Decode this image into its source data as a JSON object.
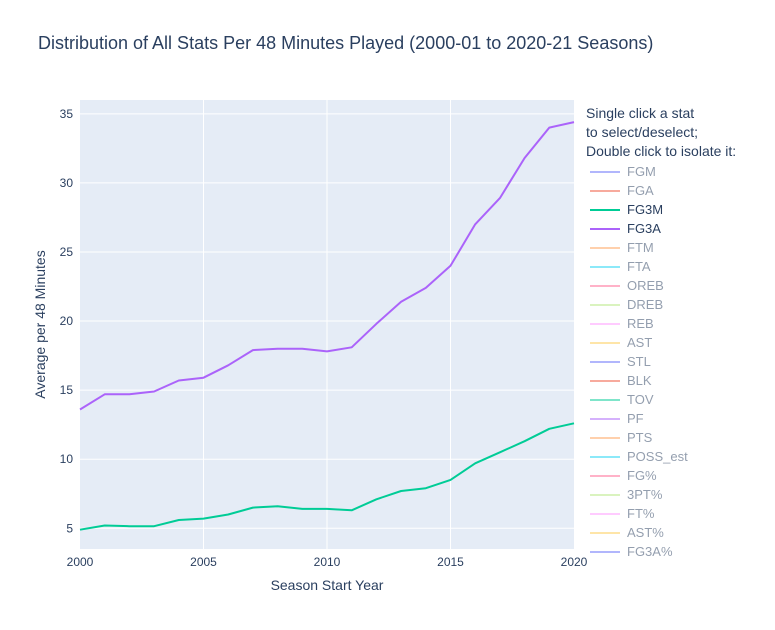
{
  "chart_data": {
    "type": "line",
    "title": "Distribution of All Stats Per 48 Minutes Played (2000-01 to 2020-21 Seasons)",
    "xlabel": "Season Start Year",
    "ylabel": "Average per 48 Minutes",
    "xlim": [
      2000,
      2020
    ],
    "ylim": [
      3.5,
      36
    ],
    "x_ticks": [
      "2000",
      "2005",
      "2010",
      "2015",
      "2020"
    ],
    "x_tick_values": [
      2000,
      2005,
      2010,
      2015,
      2020
    ],
    "y_ticks": [
      "5",
      "10",
      "15",
      "20",
      "25",
      "30",
      "35"
    ],
    "y_tick_values": [
      5,
      10,
      15,
      20,
      25,
      30,
      35
    ],
    "grid": true,
    "legend_placement": "right",
    "plot_background": "#e5ecf6",
    "x": [
      2000,
      2001,
      2002,
      2003,
      2004,
      2005,
      2006,
      2007,
      2008,
      2009,
      2010,
      2011,
      2012,
      2013,
      2014,
      2015,
      2016,
      2017,
      2018,
      2019,
      2020
    ],
    "series": [
      {
        "name": "FG3M",
        "color": "#00cc96",
        "visible": true,
        "values": [
          4.9,
          5.2,
          5.15,
          5.15,
          5.6,
          5.7,
          6.0,
          6.5,
          6.6,
          6.4,
          6.4,
          6.3,
          7.1,
          7.7,
          7.9,
          8.5,
          9.7,
          10.5,
          11.3,
          12.2,
          12.6
        ]
      },
      {
        "name": "FG3A",
        "color": "#ab63fa",
        "visible": true,
        "values": [
          13.6,
          14.7,
          14.7,
          14.9,
          15.7,
          15.9,
          16.8,
          17.9,
          18.0,
          18.0,
          17.8,
          18.1,
          19.8,
          21.4,
          22.4,
          24.0,
          27.0,
          28.9,
          31.8,
          34.0,
          34.4
        ]
      }
    ]
  },
  "legend": {
    "title": "Single click a stat\nto select/deselect;\nDouble click to isolate it:",
    "items": [
      {
        "label": "FGM",
        "color": "#636efa",
        "visible": false
      },
      {
        "label": "FGA",
        "color": "#ef553b",
        "visible": false
      },
      {
        "label": "FG3M",
        "color": "#00cc96",
        "visible": true
      },
      {
        "label": "FG3A",
        "color": "#ab63fa",
        "visible": true
      },
      {
        "label": "FTM",
        "color": "#ffa15a",
        "visible": false
      },
      {
        "label": "FTA",
        "color": "#19d3f3",
        "visible": false
      },
      {
        "label": "OREB",
        "color": "#ff6692",
        "visible": false
      },
      {
        "label": "DREB",
        "color": "#b6e880",
        "visible": false
      },
      {
        "label": "REB",
        "color": "#ff97ff",
        "visible": false
      },
      {
        "label": "AST",
        "color": "#fecb52",
        "visible": false
      },
      {
        "label": "STL",
        "color": "#636efa",
        "visible": false
      },
      {
        "label": "BLK",
        "color": "#ef553b",
        "visible": false
      },
      {
        "label": "TOV",
        "color": "#00cc96",
        "visible": false
      },
      {
        "label": "PF",
        "color": "#ab63fa",
        "visible": false
      },
      {
        "label": "PTS",
        "color": "#ffa15a",
        "visible": false
      },
      {
        "label": "POSS_est",
        "color": "#19d3f3",
        "visible": false
      },
      {
        "label": "FG%",
        "color": "#ff6692",
        "visible": false
      },
      {
        "label": "3PT%",
        "color": "#b6e880",
        "visible": false
      },
      {
        "label": "FT%",
        "color": "#ff97ff",
        "visible": false
      },
      {
        "label": "AST%",
        "color": "#fecb52",
        "visible": false
      },
      {
        "label": "FG3A%",
        "color": "#636efa",
        "visible": false
      }
    ]
  }
}
